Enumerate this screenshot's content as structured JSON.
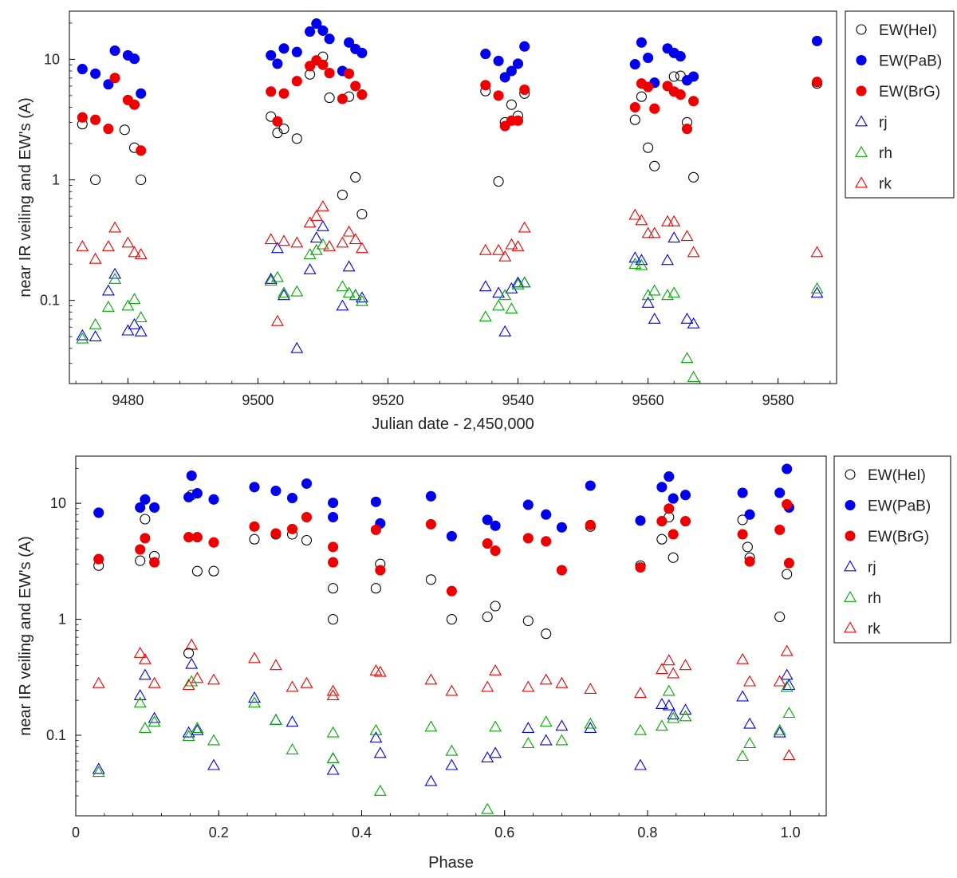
{
  "chart_data": [
    {
      "type": "scatter",
      "yscale": "log",
      "xlabel": "Julian date - 2,450,000",
      "ylabel": "near IR veiling and EW's (A)",
      "xlim": [
        9471,
        9589
      ],
      "ylim": [
        0.0204,
        25.1
      ],
      "xticks": [
        9480,
        9500,
        9520,
        9540,
        9560,
        9580
      ],
      "yticks": [
        0.1,
        1,
        10
      ],
      "yticklabels": [
        "0.1",
        "1",
        "10"
      ],
      "legend_position": "outside-right",
      "series": [
        {
          "name": "EW(HeI)",
          "marker": "circle",
          "fill": "none",
          "color": "#000000",
          "x": [
            9473,
            9475,
            9479.5,
            9481,
            9482,
            9502,
            9503,
            9504,
            9506,
            9508,
            9510,
            9511,
            9513,
            9514,
            9515,
            9516,
            9535,
            9537,
            9538,
            9539,
            9540,
            9541,
            9558,
            9559,
            9560,
            9561,
            9564,
            9565,
            9566,
            9567,
            9586
          ],
          "y": [
            2.9,
            1.0,
            2.6,
            1.85,
            1.0,
            3.35,
            2.45,
            2.65,
            2.2,
            7.5,
            10.5,
            4.8,
            0.75,
            4.9,
            1.05,
            0.52,
            5.45,
            0.97,
            3.0,
            4.2,
            3.4,
            5.2,
            3.15,
            4.9,
            1.85,
            1.3,
            7.2,
            7.3,
            3.0,
            1.05,
            6.3
          ]
        },
        {
          "name": "EW(PaB)",
          "marker": "circle",
          "fill": "solid",
          "color": "#0000ee",
          "x": [
            9473,
            9475,
            9477,
            9478,
            9480,
            9481,
            9482,
            9502,
            9503,
            9504,
            9506,
            9508,
            9509,
            9510,
            9511,
            9513,
            9514,
            9515,
            9516,
            9535,
            9537,
            9538,
            9539,
            9540,
            9541,
            9558,
            9559,
            9560,
            9561,
            9563,
            9564,
            9565,
            9566,
            9567,
            9586
          ],
          "y": [
            8.3,
            7.6,
            6.2,
            11.8,
            10.8,
            10.1,
            5.2,
            10.8,
            9.2,
            12.3,
            11.5,
            17.0,
            19.8,
            17.3,
            14.8,
            8.0,
            13.8,
            12.2,
            11.3,
            11.1,
            9.7,
            7.1,
            8.0,
            9.2,
            12.8,
            9.1,
            13.8,
            10.3,
            6.4,
            12.3,
            11.3,
            10.6,
            6.7,
            7.2,
            14.2
          ]
        },
        {
          "name": "EW(BrG)",
          "marker": "circle",
          "fill": "solid",
          "color": "#ee0000",
          "x": [
            9473,
            9475,
            9477,
            9478,
            9480,
            9481,
            9482,
            9502,
            9503,
            9504,
            9506,
            9508,
            9509,
            9510,
            9511,
            9513,
            9514,
            9515,
            9516,
            9535,
            9537,
            9538,
            9539,
            9540,
            9541,
            9558,
            9559,
            9560,
            9561,
            9563,
            9564,
            9565,
            9566,
            9567,
            9586
          ],
          "y": [
            3.3,
            3.15,
            2.65,
            7.0,
            4.6,
            4.2,
            1.75,
            5.4,
            3.05,
            5.2,
            6.6,
            8.8,
            9.8,
            9.0,
            7.7,
            4.7,
            7.6,
            6.0,
            5.1,
            6.1,
            5.0,
            2.8,
            3.1,
            3.1,
            5.6,
            4.0,
            6.3,
            5.9,
            3.9,
            6.0,
            5.4,
            5.1,
            2.65,
            4.5,
            6.5
          ]
        },
        {
          "name": "rj",
          "marker": "triangle",
          "fill": "none",
          "color": "#0000ee",
          "x": [
            9473,
            9475,
            9477,
            9478,
            9480,
            9481,
            9482,
            9502,
            9503,
            9504,
            9506,
            9508,
            9509,
            9510,
            9513,
            9514,
            9515,
            9516,
            9535,
            9537,
            9538,
            9539,
            9540,
            9541,
            9558,
            9559,
            9560,
            9561,
            9563,
            9564,
            9566,
            9567,
            9586
          ],
          "y": [
            0.051,
            0.05,
            0.12,
            0.165,
            0.056,
            0.063,
            0.055,
            0.15,
            0.27,
            0.11,
            0.04,
            0.18,
            0.33,
            0.41,
            0.09,
            0.19,
            0.11,
            0.105,
            0.13,
            0.115,
            0.055,
            0.125,
            0.14,
            0.14,
            0.225,
            0.215,
            0.095,
            0.07,
            0.215,
            0.33,
            0.07,
            0.064,
            0.115
          ]
        },
        {
          "name": "rh",
          "marker": "triangle",
          "fill": "none",
          "color": "#00aa00",
          "x": [
            9473,
            9475,
            9477,
            9478,
            9480,
            9481,
            9482,
            9502,
            9503,
            9504,
            9506,
            9508,
            9509,
            9510,
            9513,
            9514,
            9515,
            9516,
            9535,
            9537,
            9538,
            9539,
            9540,
            9541,
            9558,
            9559,
            9560,
            9561,
            9563,
            9564,
            9566,
            9567,
            9586
          ],
          "y": [
            0.048,
            0.063,
            0.088,
            0.15,
            0.09,
            0.102,
            0.072,
            0.145,
            0.155,
            0.115,
            0.118,
            0.24,
            0.26,
            0.29,
            0.13,
            0.115,
            0.11,
            0.098,
            0.073,
            0.09,
            0.11,
            0.085,
            0.135,
            0.14,
            0.2,
            0.195,
            0.11,
            0.12,
            0.11,
            0.115,
            0.033,
            0.023,
            0.125
          ]
        },
        {
          "name": "rk",
          "marker": "triangle",
          "fill": "none",
          "color": "#ee0000",
          "x": [
            9473,
            9475,
            9477,
            9478,
            9480,
            9481,
            9482,
            9502,
            9503,
            9504,
            9506,
            9508,
            9509,
            9510,
            9511,
            9513,
            9514,
            9515,
            9516,
            9535,
            9537,
            9538,
            9539,
            9540,
            9541,
            9558,
            9559,
            9560,
            9561,
            9563,
            9564,
            9566,
            9567,
            9586
          ],
          "y": [
            0.28,
            0.22,
            0.28,
            0.4,
            0.3,
            0.25,
            0.24,
            0.32,
            0.067,
            0.31,
            0.3,
            0.44,
            0.5,
            0.6,
            0.28,
            0.3,
            0.37,
            0.32,
            0.27,
            0.26,
            0.26,
            0.23,
            0.29,
            0.28,
            0.4,
            0.51,
            0.46,
            0.36,
            0.36,
            0.45,
            0.45,
            0.34,
            0.25,
            0.25
          ]
        }
      ]
    },
    {
      "type": "scatter",
      "yscale": "log",
      "xlabel": "Phase",
      "ylabel": "near IR veiling and EW's (A)",
      "xlim": [
        0,
        1.05
      ],
      "ylim": [
        0.0202,
        25.5
      ],
      "xticks": [
        0,
        0.2,
        0.4,
        0.6,
        0.8,
        1.0
      ],
      "xticklabels": [
        "0",
        "0.2",
        "0.4",
        "0.6",
        "0.8",
        "1.0"
      ],
      "yticks": [
        0.1,
        1,
        10
      ],
      "yticklabels": [
        "0.1",
        "1",
        "10"
      ],
      "legend_position": "outside-right",
      "series": [
        {
          "name": "EW(HeI)",
          "marker": "circle",
          "fill": "none",
          "color": "#000000",
          "x": [
            0.032,
            0.09,
            0.097,
            0.11,
            0.158,
            0.162,
            0.17,
            0.193,
            0.25,
            0.28,
            0.303,
            0.323,
            0.36,
            0.36,
            0.42,
            0.426,
            0.497,
            0.526,
            0.576,
            0.587,
            0.633,
            0.658,
            0.72,
            0.79,
            0.82,
            0.83,
            0.836,
            0.933,
            0.94,
            0.943,
            0.985,
            0.995
          ],
          "y": [
            2.9,
            3.2,
            7.3,
            3.5,
            0.51,
            11.8,
            2.6,
            2.6,
            4.9,
            5.4,
            5.4,
            4.8,
            1.85,
            1.0,
            1.85,
            3.0,
            2.2,
            1.0,
            1.05,
            1.3,
            0.97,
            0.75,
            6.3,
            2.9,
            4.9,
            7.6,
            3.4,
            7.2,
            4.2,
            3.4,
            1.05,
            2.45
          ]
        },
        {
          "name": "EW(PaB)",
          "marker": "circle",
          "fill": "solid",
          "color": "#0000ee",
          "x": [
            0.032,
            0.09,
            0.097,
            0.11,
            0.158,
            0.162,
            0.17,
            0.193,
            0.25,
            0.28,
            0.303,
            0.323,
            0.36,
            0.36,
            0.42,
            0.426,
            0.497,
            0.526,
            0.576,
            0.587,
            0.633,
            0.658,
            0.68,
            0.72,
            0.79,
            0.82,
            0.83,
            0.836,
            0.853,
            0.933,
            0.943,
            0.985,
            0.995,
            0.998
          ],
          "y": [
            8.3,
            9.2,
            10.8,
            9.2,
            11.3,
            17.3,
            12.2,
            10.8,
            13.8,
            12.8,
            11.1,
            14.8,
            7.6,
            10.1,
            10.3,
            6.7,
            11.5,
            5.2,
            7.2,
            6.4,
            9.7,
            8.0,
            6.2,
            14.2,
            7.1,
            13.8,
            17.0,
            11.0,
            11.8,
            12.3,
            8.0,
            12.3,
            19.8,
            9.2
          ]
        },
        {
          "name": "EW(BrG)",
          "marker": "circle",
          "fill": "solid",
          "color": "#ee0000",
          "x": [
            0.032,
            0.09,
            0.097,
            0.11,
            0.158,
            0.17,
            0.193,
            0.25,
            0.28,
            0.303,
            0.323,
            0.36,
            0.36,
            0.42,
            0.426,
            0.497,
            0.526,
            0.576,
            0.587,
            0.633,
            0.658,
            0.68,
            0.72,
            0.79,
            0.82,
            0.83,
            0.836,
            0.853,
            0.933,
            0.943,
            0.985,
            0.995,
            0.998
          ],
          "y": [
            3.3,
            4.0,
            5.0,
            3.1,
            5.1,
            5.1,
            4.6,
            6.3,
            5.5,
            6.0,
            7.6,
            4.2,
            3.1,
            5.9,
            2.65,
            6.6,
            1.75,
            4.5,
            3.9,
            5.0,
            4.7,
            2.65,
            6.5,
            2.8,
            7.0,
            9.0,
            5.4,
            7.0,
            5.4,
            3.15,
            5.9,
            9.8,
            3.05
          ]
        },
        {
          "name": "rj",
          "marker": "triangle",
          "fill": "none",
          "color": "#0000ee",
          "x": [
            0.032,
            0.09,
            0.097,
            0.11,
            0.158,
            0.162,
            0.17,
            0.193,
            0.25,
            0.28,
            0.303,
            0.36,
            0.36,
            0.42,
            0.426,
            0.497,
            0.526,
            0.576,
            0.587,
            0.633,
            0.658,
            0.68,
            0.72,
            0.79,
            0.82,
            0.83,
            0.836,
            0.853,
            0.933,
            0.943,
            0.985,
            0.995,
            0.998
          ],
          "y": [
            0.051,
            0.22,
            0.33,
            0.14,
            0.105,
            0.41,
            0.11,
            0.055,
            0.21,
            0.135,
            0.13,
            0.063,
            0.05,
            0.095,
            0.07,
            0.04,
            0.055,
            0.064,
            0.07,
            0.115,
            0.09,
            0.12,
            0.115,
            0.055,
            0.185,
            0.18,
            0.15,
            0.165,
            0.215,
            0.125,
            0.105,
            0.33,
            0.27
          ]
        },
        {
          "name": "rh",
          "marker": "triangle",
          "fill": "none",
          "color": "#00aa00",
          "x": [
            0.032,
            0.09,
            0.097,
            0.11,
            0.158,
            0.162,
            0.17,
            0.193,
            0.25,
            0.28,
            0.303,
            0.36,
            0.36,
            0.42,
            0.426,
            0.497,
            0.526,
            0.576,
            0.587,
            0.633,
            0.658,
            0.68,
            0.72,
            0.79,
            0.82,
            0.83,
            0.836,
            0.853,
            0.933,
            0.943,
            0.985,
            0.995,
            0.998
          ],
          "y": [
            0.048,
            0.19,
            0.115,
            0.13,
            0.098,
            0.29,
            0.115,
            0.09,
            0.19,
            0.135,
            0.075,
            0.063,
            0.105,
            0.11,
            0.033,
            0.118,
            0.073,
            0.023,
            0.118,
            0.085,
            0.13,
            0.09,
            0.125,
            0.11,
            0.12,
            0.24,
            0.14,
            0.145,
            0.066,
            0.085,
            0.11,
            0.26,
            0.155
          ]
        },
        {
          "name": "rk",
          "marker": "triangle",
          "fill": "none",
          "color": "#ee0000",
          "x": [
            0.032,
            0.09,
            0.097,
            0.11,
            0.158,
            0.162,
            0.17,
            0.193,
            0.25,
            0.28,
            0.303,
            0.323,
            0.36,
            0.36,
            0.42,
            0.426,
            0.497,
            0.526,
            0.576,
            0.587,
            0.633,
            0.658,
            0.68,
            0.72,
            0.79,
            0.82,
            0.83,
            0.836,
            0.853,
            0.933,
            0.943,
            0.985,
            0.995,
            0.998
          ],
          "y": [
            0.28,
            0.51,
            0.45,
            0.28,
            0.27,
            0.6,
            0.31,
            0.3,
            0.46,
            0.4,
            0.26,
            0.28,
            0.22,
            0.24,
            0.36,
            0.35,
            0.3,
            0.24,
            0.26,
            0.36,
            0.26,
            0.3,
            0.28,
            0.25,
            0.23,
            0.37,
            0.44,
            0.34,
            0.4,
            0.45,
            0.29,
            0.29,
            0.53,
            0.067
          ]
        }
      ]
    }
  ]
}
